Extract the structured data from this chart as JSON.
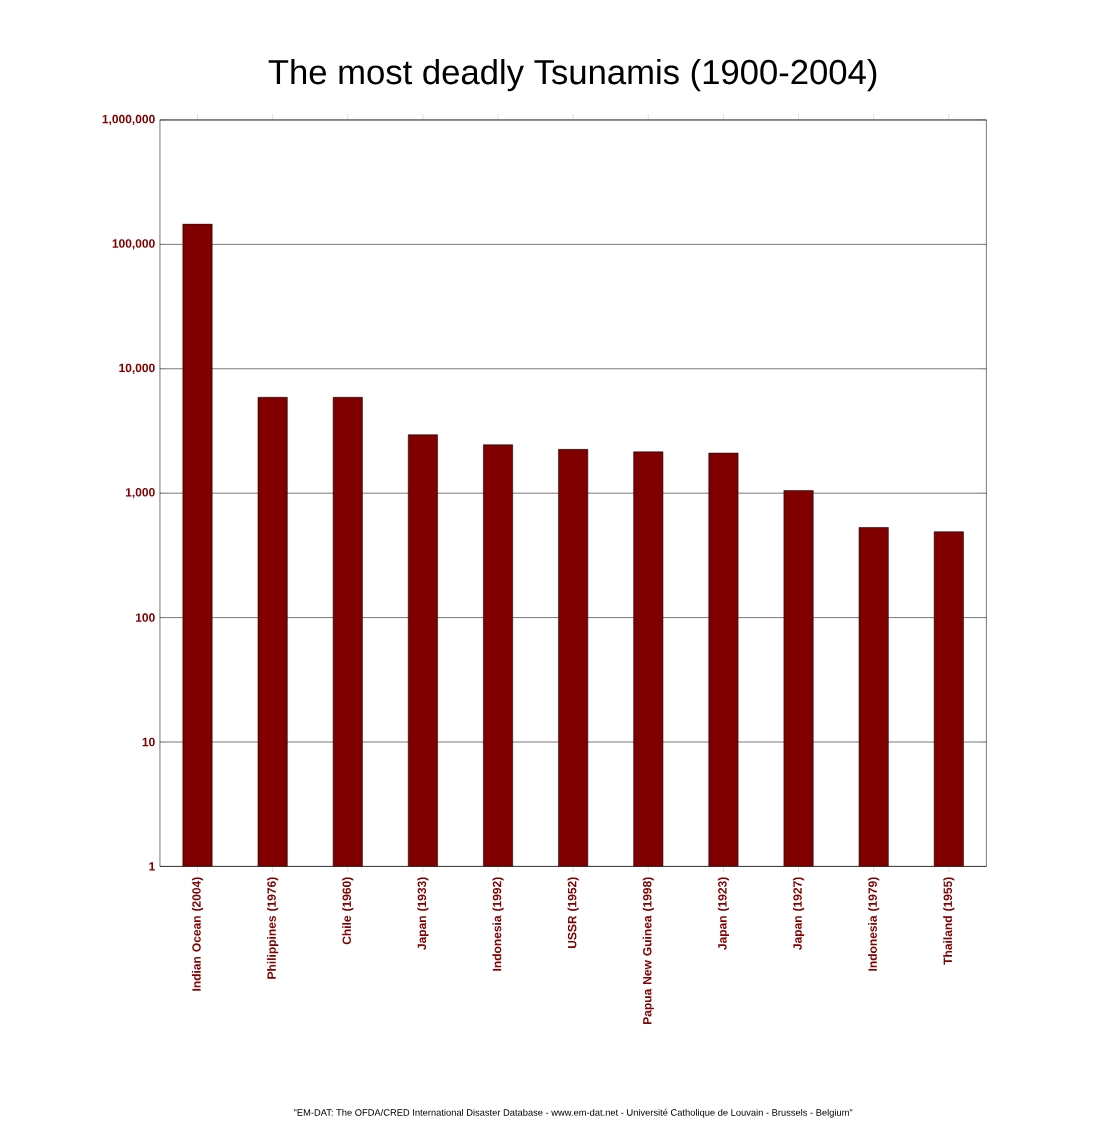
{
  "chart_data": {
    "type": "bar",
    "title": "The most deadly Tsunamis (1900-2004)",
    "categories": [
      "Indian Ocean (2004)",
      "Philippines (1976)",
      "Chile (1960)",
      "Japan (1933)",
      "Indonesia (1992)",
      "USSR (1952)",
      "Papua New Guinea (1998)",
      "Japan (1923)",
      "Japan (1927)",
      "Indonesia (1979)",
      "Thailand (1955)"
    ],
    "values": [
      146000,
      5900,
      5900,
      2950,
      2450,
      2250,
      2150,
      2100,
      1050,
      530,
      490
    ],
    "color": "#800000",
    "log": true,
    "grid": "y",
    "ylim": [
      1,
      1000000
    ],
    "yticks": [
      1,
      10,
      100,
      {
        "value": 1000,
        "label": "1,000"
      },
      {
        "value": 10000,
        "label": "10,000"
      },
      {
        "value": 100000,
        "label": "100,000"
      },
      {
        "value": 1000000,
        "label": "1,000,000"
      }
    ],
    "annotations": [
      "\"EM-DAT: The OFDA/CRED International Disaster Database - www.em-dat.net - Université Catholique de Louvain - Brussels - Belgium\""
    ]
  }
}
